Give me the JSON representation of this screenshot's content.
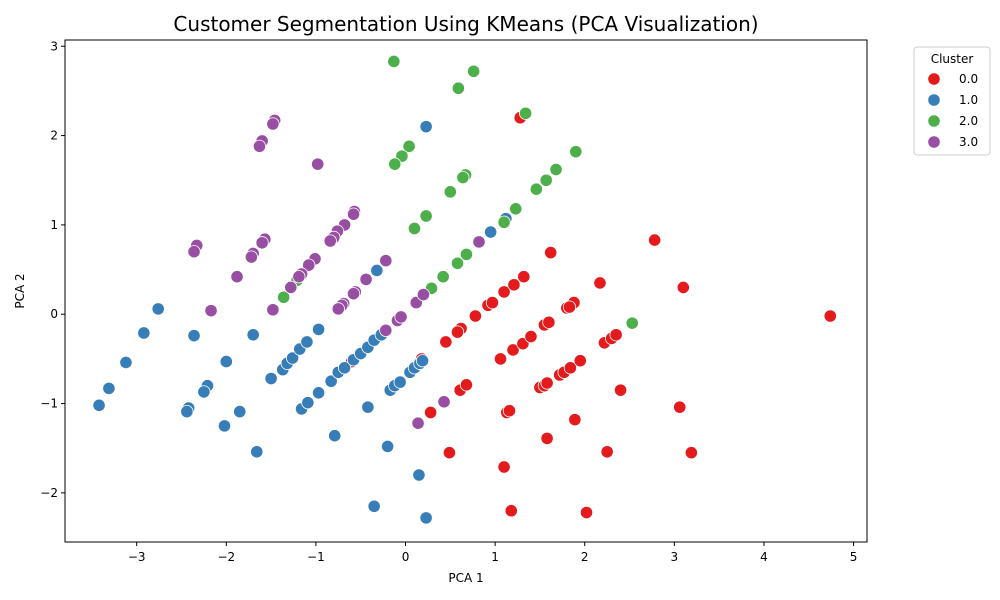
{
  "chart_data": {
    "type": "scatter",
    "title": "Customer Segmentation Using KMeans (PCA Visualization)",
    "xlabel": "PCA 1",
    "ylabel": "PCA 2",
    "xlim": [
      -3.8,
      5.15
    ],
    "ylim": [
      -2.55,
      3.07
    ],
    "xticks": [
      -3,
      -2,
      -1,
      0,
      1,
      2,
      3,
      4,
      5
    ],
    "yticks": [
      -2,
      -1,
      0,
      1,
      2,
      3
    ],
    "grid": false,
    "legend": {
      "title": "Cluster",
      "placement": "outside-top-right"
    },
    "series": [
      {
        "name": "0.0",
        "color": "#e41a1c",
        "points": [
          [
            4.74,
            -0.02
          ],
          [
            2.78,
            0.83
          ],
          [
            3.1,
            0.3
          ],
          [
            3.06,
            -1.04
          ],
          [
            3.19,
            -1.55
          ],
          [
            2.17,
            0.35
          ],
          [
            1.62,
            0.69
          ],
          [
            1.28,
            2.2
          ],
          [
            2.25,
            -1.54
          ],
          [
            2.02,
            -2.22
          ],
          [
            1.18,
            -2.2
          ],
          [
            1.1,
            -1.71
          ],
          [
            0.49,
            -1.55
          ],
          [
            0.28,
            -1.1
          ],
          [
            0.45,
            -0.31
          ],
          [
            0.62,
            -0.16
          ],
          [
            0.58,
            -0.2
          ],
          [
            0.78,
            -0.02
          ],
          [
            0.92,
            0.1
          ],
          [
            0.97,
            0.13
          ],
          [
            1.1,
            0.25
          ],
          [
            1.21,
            0.33
          ],
          [
            1.32,
            0.42
          ],
          [
            1.06,
            -0.5
          ],
          [
            1.2,
            -0.4
          ],
          [
            1.31,
            -0.33
          ],
          [
            1.4,
            -0.25
          ],
          [
            1.55,
            -0.12
          ],
          [
            1.6,
            -0.09
          ],
          [
            1.8,
            0.07
          ],
          [
            1.88,
            0.13
          ],
          [
            1.83,
            0.08
          ],
          [
            1.5,
            -0.82
          ],
          [
            1.55,
            -0.8
          ],
          [
            1.58,
            -0.77
          ],
          [
            1.72,
            -0.68
          ],
          [
            1.77,
            -0.65
          ],
          [
            1.84,
            -0.6
          ],
          [
            1.95,
            -0.52
          ],
          [
            2.22,
            -0.32
          ],
          [
            2.3,
            -0.27
          ],
          [
            2.35,
            -0.23
          ],
          [
            2.4,
            -0.85
          ],
          [
            1.89,
            -1.18
          ],
          [
            1.58,
            -1.39
          ],
          [
            1.13,
            -1.1
          ],
          [
            1.16,
            -1.08
          ],
          [
            0.61,
            -0.85
          ],
          [
            0.68,
            -0.79
          ],
          [
            0.18,
            -0.5
          ],
          [
            -0.6,
            -0.53
          ]
        ]
      },
      {
        "name": "1.0",
        "color": "#377eb8",
        "points": [
          [
            -3.42,
            -1.02
          ],
          [
            -3.31,
            -0.83
          ],
          [
            -3.12,
            -0.54
          ],
          [
            -2.92,
            -0.21
          ],
          [
            -2.76,
            0.06
          ],
          [
            -2.42,
            -1.05
          ],
          [
            -2.44,
            -1.09
          ],
          [
            -2.36,
            -0.24
          ],
          [
            -2.21,
            -0.8
          ],
          [
            -2.25,
            -0.87
          ],
          [
            -2.0,
            -0.53
          ],
          [
            -2.02,
            -1.25
          ],
          [
            -1.85,
            -1.09
          ],
          [
            -1.7,
            -0.23
          ],
          [
            -1.66,
            -1.54
          ],
          [
            -1.5,
            -0.72
          ],
          [
            -1.37,
            -0.62
          ],
          [
            -1.32,
            -0.55
          ],
          [
            -1.26,
            -0.49
          ],
          [
            -1.18,
            -0.39
          ],
          [
            -1.1,
            -0.31
          ],
          [
            -0.97,
            -0.17
          ],
          [
            -1.16,
            -1.06
          ],
          [
            -1.09,
            -0.99
          ],
          [
            -0.97,
            -0.88
          ],
          [
            -0.83,
            -0.75
          ],
          [
            -0.75,
            -0.65
          ],
          [
            -0.68,
            -0.6
          ],
          [
            -0.58,
            -0.51
          ],
          [
            -0.5,
            -0.44
          ],
          [
            -0.42,
            -0.37
          ],
          [
            -0.35,
            -0.29
          ],
          [
            -0.27,
            -0.23
          ],
          [
            -0.32,
            0.49
          ],
          [
            -0.79,
            -1.36
          ],
          [
            -0.42,
            -1.04
          ],
          [
            -0.2,
            -1.48
          ],
          [
            -0.17,
            -0.85
          ],
          [
            -0.12,
            -0.8
          ],
          [
            -0.06,
            -0.76
          ],
          [
            0.05,
            -0.65
          ],
          [
            0.1,
            -0.6
          ],
          [
            0.16,
            -0.55
          ],
          [
            0.19,
            -0.52
          ],
          [
            0.15,
            -1.8
          ],
          [
            -0.35,
            -2.15
          ],
          [
            0.23,
            -2.28
          ],
          [
            0.23,
            2.1
          ],
          [
            0.95,
            0.92
          ],
          [
            1.12,
            1.07
          ]
        ]
      },
      {
        "name": "2.0",
        "color": "#4daf4a",
        "points": [
          [
            -0.13,
            2.83
          ],
          [
            0.76,
            2.72
          ],
          [
            0.59,
            2.53
          ],
          [
            1.34,
            2.25
          ],
          [
            1.9,
            1.82
          ],
          [
            1.68,
            1.62
          ],
          [
            1.57,
            1.5
          ],
          [
            1.46,
            1.4
          ],
          [
            1.23,
            1.18
          ],
          [
            1.1,
            1.03
          ],
          [
            0.67,
            1.56
          ],
          [
            0.64,
            1.53
          ],
          [
            0.5,
            1.37
          ],
          [
            0.04,
            1.88
          ],
          [
            -0.04,
            1.77
          ],
          [
            -0.12,
            1.68
          ],
          [
            0.23,
            1.1
          ],
          [
            0.1,
            0.96
          ],
          [
            0.68,
            0.67
          ],
          [
            0.58,
            0.57
          ],
          [
            0.42,
            0.42
          ],
          [
            0.29,
            0.29
          ],
          [
            -1.36,
            0.19
          ],
          [
            -1.21,
            0.38
          ],
          [
            2.53,
            -0.1
          ]
        ]
      },
      {
        "name": "3.0",
        "color": "#984ea3",
        "points": [
          [
            -1.46,
            2.17
          ],
          [
            -1.48,
            2.13
          ],
          [
            -1.6,
            1.94
          ],
          [
            -1.63,
            1.88
          ],
          [
            -0.98,
            1.68
          ],
          [
            -0.57,
            1.15
          ],
          [
            -0.58,
            1.12
          ],
          [
            -0.68,
            1.0
          ],
          [
            -0.76,
            0.93
          ],
          [
            -0.8,
            0.86
          ],
          [
            -0.84,
            0.82
          ],
          [
            -1.57,
            0.84
          ],
          [
            -1.6,
            0.8
          ],
          [
            -1.7,
            0.68
          ],
          [
            -1.72,
            0.64
          ],
          [
            -2.33,
            0.77
          ],
          [
            -2.36,
            0.7
          ],
          [
            -1.88,
            0.42
          ],
          [
            -2.17,
            0.04
          ],
          [
            -1.48,
            0.05
          ],
          [
            -1.01,
            0.62
          ],
          [
            -1.08,
            0.55
          ],
          [
            -1.16,
            0.45
          ],
          [
            -1.19,
            0.42
          ],
          [
            -1.28,
            0.3
          ],
          [
            -0.56,
            0.25
          ],
          [
            -0.58,
            0.23
          ],
          [
            -0.69,
            0.12
          ],
          [
            -0.71,
            0.1
          ],
          [
            -0.75,
            0.06
          ],
          [
            -0.44,
            0.39
          ],
          [
            -0.22,
            0.6
          ],
          [
            -0.22,
            -0.18
          ],
          [
            -0.09,
            -0.07
          ],
          [
            -0.05,
            -0.03
          ],
          [
            0.12,
            0.13
          ],
          [
            0.2,
            0.22
          ],
          [
            0.82,
            0.81
          ],
          [
            0.43,
            -0.98
          ],
          [
            0.14,
            -1.22
          ]
        ]
      }
    ]
  }
}
